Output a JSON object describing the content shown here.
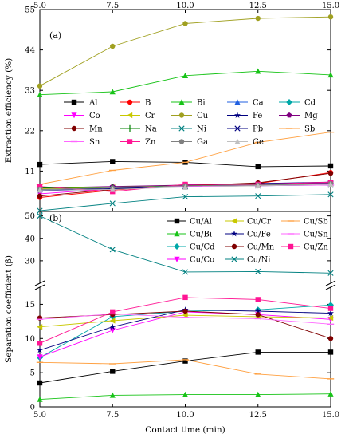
{
  "chart_data": [
    {
      "type": "line",
      "panel_label": "(a)",
      "ylabel": "Extraction efficiency (%)",
      "x": [
        5.0,
        7.5,
        10.0,
        12.5,
        15.0
      ],
      "x_tick_labels": [
        "5.0",
        "7.5",
        "10.0",
        "12.5",
        "15.0"
      ],
      "ylim": [
        0,
        55
      ],
      "y_ticks": [
        0,
        11,
        22,
        33,
        44,
        55
      ],
      "legend_position": "lower-middle",
      "series": [
        {
          "name": "Al",
          "color": "#000000",
          "marker": "square",
          "values": [
            12.8,
            13.6,
            13.4,
            12.2,
            12.4
          ]
        },
        {
          "name": "B",
          "color": "#ff0000",
          "marker": "circle",
          "values": [
            3.8,
            5.8,
            7.0,
            7.6,
            10.6
          ]
        },
        {
          "name": "Bi",
          "color": "#17c317",
          "marker": "triangle",
          "values": [
            31.8,
            32.6,
            37.0,
            38.2,
            37.2
          ]
        },
        {
          "name": "Ca",
          "color": "#1f5fe0",
          "marker": "triangle",
          "values": [
            6.4,
            6.6,
            7.2,
            7.4,
            7.6
          ]
        },
        {
          "name": "Cd",
          "color": "#00a8a8",
          "marker": "diamond",
          "values": [
            5.8,
            6.0,
            6.8,
            7.2,
            7.6
          ]
        },
        {
          "name": "Co",
          "color": "#ff00ff",
          "marker": "triangle-down",
          "values": [
            4.8,
            6.2,
            7.0,
            7.4,
            7.8
          ]
        },
        {
          "name": "Cr",
          "color": "#c8c800",
          "marker": "triangle-left",
          "values": [
            6.2,
            6.6,
            7.2,
            7.2,
            7.4
          ]
        },
        {
          "name": "Cu",
          "color": "#a0a020",
          "marker": "circle",
          "values": [
            34.2,
            45.0,
            51.2,
            52.6,
            53.0
          ]
        },
        {
          "name": "Fe",
          "color": "#000080",
          "marker": "star",
          "values": [
            5.6,
            6.2,
            7.2,
            7.6,
            8.0
          ]
        },
        {
          "name": "Mg",
          "color": "#800080",
          "marker": "pentagon",
          "values": [
            6.4,
            6.8,
            7.2,
            7.4,
            7.8
          ]
        },
        {
          "name": "Mn",
          "color": "#800000",
          "marker": "circle",
          "values": [
            4.2,
            6.0,
            7.0,
            7.8,
            10.4
          ]
        },
        {
          "name": "Na",
          "color": "#008000",
          "marker": "vbar",
          "values": [
            6.4,
            6.6,
            7.0,
            7.2,
            7.4
          ]
        },
        {
          "name": "Ni",
          "color": "#008080",
          "marker": "x",
          "values": [
            0.2,
            2.2,
            4.0,
            4.2,
            4.6
          ]
        },
        {
          "name": "Pb",
          "color": "#000080",
          "marker": "x",
          "values": [
            6.0,
            6.2,
            6.8,
            7.0,
            7.2
          ]
        },
        {
          "name": "Sb",
          "color": "#ffa040",
          "marker": "dash",
          "values": [
            7.4,
            11.2,
            13.4,
            18.8,
            21.6
          ]
        },
        {
          "name": "Sn",
          "color": "#ff66ff",
          "marker": "dash",
          "values": [
            6.6,
            6.6,
            6.8,
            7.0,
            7.2
          ]
        },
        {
          "name": "Zn",
          "color": "#ff1493",
          "marker": "square",
          "values": [
            6.8,
            5.4,
            7.4,
            7.4,
            8.0
          ]
        },
        {
          "name": "Ga",
          "color": "#808080",
          "marker": "circle",
          "values": [
            6.0,
            6.4,
            7.0,
            7.2,
            7.6
          ]
        },
        {
          "name": "Ge",
          "color": "#c0c0c0",
          "marker": "triangle",
          "values": [
            5.8,
            6.0,
            6.6,
            7.0,
            7.4
          ]
        }
      ]
    },
    {
      "type": "line",
      "panel_label": "(b)",
      "ylabel": "Separation coefficient (β)",
      "xlabel": "Contact time (min)",
      "x": [
        5.0,
        7.5,
        10.0,
        12.5,
        15.0
      ],
      "x_tick_labels": [
        "5.0",
        "7.5",
        "10.0",
        "12.5",
        "15.0"
      ],
      "y_axis_break": true,
      "ylim_lower": [
        0,
        17.5
      ],
      "y_ticks_lower": [
        0,
        5,
        10,
        15
      ],
      "ylim_upper": [
        20,
        52
      ],
      "y_ticks_upper": [
        30,
        40,
        50
      ],
      "legend_position": "top-right",
      "series": [
        {
          "name": "Cu/Al",
          "color": "#000000",
          "marker": "square",
          "values": [
            3.5,
            5.2,
            6.7,
            8.0,
            8.0
          ]
        },
        {
          "name": "Cu/Bi",
          "color": "#17c317",
          "marker": "triangle",
          "values": [
            1.1,
            1.7,
            1.8,
            1.8,
            1.9
          ]
        },
        {
          "name": "Cu/Cd",
          "color": "#00a8a8",
          "marker": "diamond",
          "values": [
            7.2,
            13.2,
            14.0,
            14.2,
            14.9
          ]
        },
        {
          "name": "Cu/Co",
          "color": "#ff00ff",
          "marker": "triangle-down",
          "values": [
            7.3,
            11.2,
            13.9,
            13.5,
            12.8
          ]
        },
        {
          "name": "Cu/Cr",
          "color": "#c8c800",
          "marker": "triangle-left",
          "values": [
            11.7,
            12.6,
            13.4,
            13.2,
            13.0
          ]
        },
        {
          "name": "Cu/Fe",
          "color": "#000080",
          "marker": "star",
          "values": [
            8.3,
            11.7,
            14.2,
            14.0,
            13.7
          ]
        },
        {
          "name": "Cu/Mn",
          "color": "#800000",
          "marker": "circle",
          "values": [
            13.0,
            13.5,
            14.0,
            13.5,
            10.0
          ]
        },
        {
          "name": "Cu/Ni",
          "color": "#008080",
          "marker": "x",
          "values": [
            50.0,
            35.0,
            25.0,
            25.2,
            24.5
          ]
        },
        {
          "name": "Cu/Sb",
          "color": "#ffa040",
          "marker": "dash",
          "values": [
            6.5,
            6.3,
            6.9,
            4.8,
            4.1
          ]
        },
        {
          "name": "Cu/Sn",
          "color": "#ff66ff",
          "marker": "dash",
          "values": [
            12.8,
            13.6,
            13.1,
            12.9,
            12.1
          ]
        },
        {
          "name": "Cu/Zn",
          "color": "#ff1493",
          "marker": "square",
          "values": [
            9.3,
            13.9,
            16.0,
            15.7,
            14.4
          ]
        }
      ]
    }
  ]
}
